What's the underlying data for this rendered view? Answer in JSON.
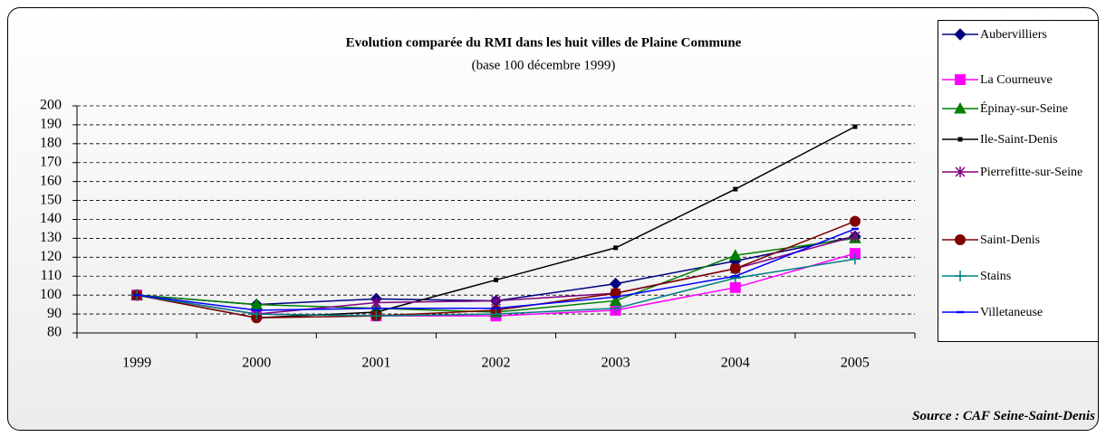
{
  "chart_data": {
    "type": "line",
    "title": "Evolution comparée du RMI dans les huit villes de Plaine Commune",
    "subtitle": "(base 100 décembre 1999)",
    "source": "Source : CAF Seine-Saint-Denis",
    "categories": [
      "1999",
      "2000",
      "2001",
      "2002",
      "2003",
      "2004",
      "2005"
    ],
    "ylim": [
      80,
      200
    ],
    "yticks": [
      80,
      90,
      100,
      110,
      120,
      130,
      140,
      150,
      160,
      170,
      180,
      190,
      200
    ],
    "grid": true,
    "series": [
      {
        "name": "Aubervilliers",
        "color": "#000080",
        "marker": "diamond",
        "values": [
          100,
          95,
          98,
          97,
          106,
          118,
          131
        ]
      },
      {
        "name": "La Courneuve",
        "color": "#ff00ff",
        "marker": "square",
        "values": [
          100,
          90,
          89,
          89,
          92,
          104,
          122
        ]
      },
      {
        "name": "Épinay-sur-Seine",
        "color": "#008000",
        "marker": "triangle",
        "values": [
          100,
          95,
          93,
          91,
          97,
          121,
          130
        ]
      },
      {
        "name": "Ile-Saint-Denis",
        "color": "#000000",
        "marker": "smallsquare",
        "values": [
          100,
          88,
          91,
          108,
          125,
          156,
          189
        ]
      },
      {
        "name": "Pierrefitte-sur-Seine",
        "color": "#800080",
        "marker": "star",
        "values": [
          100,
          90,
          96,
          97,
          101,
          114,
          131
        ]
      },
      {
        "name": "Saint-Denis",
        "color": "#800000",
        "marker": "circle",
        "values": [
          100,
          88,
          89,
          92,
          101,
          114,
          139
        ]
      },
      {
        "name": "Stains",
        "color": "#008080",
        "marker": "plus",
        "values": [
          100,
          90,
          89,
          90,
          93,
          109,
          119
        ]
      },
      {
        "name": "Villetaneuse",
        "color": "#0000ff",
        "marker": "dash",
        "values": [
          100,
          92,
          93,
          93,
          99,
          110,
          135
        ]
      }
    ]
  }
}
